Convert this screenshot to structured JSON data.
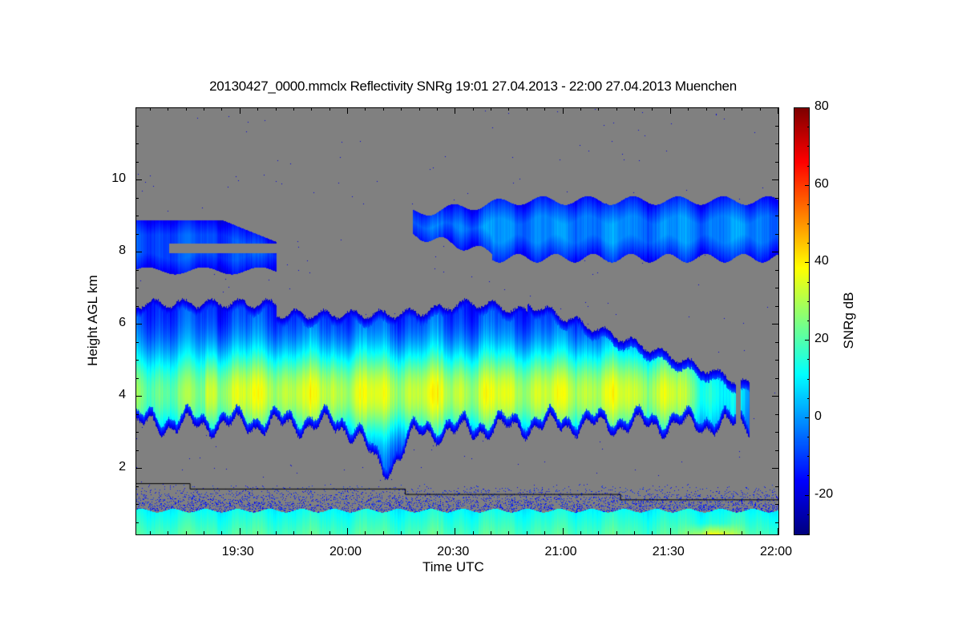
{
  "chart_data": {
    "type": "heatmap",
    "title": "20130427_0000.mmclx Reflectivity SNRg   19:01 27.04.2013 - 22:00 27.04.2013 Muenchen",
    "xlabel": "Time UTC",
    "ylabel": "Height AGL km",
    "colorbar_label": "SNRg dB",
    "xlim": [
      "19:01",
      "22:00"
    ],
    "ylim": [
      0.18,
      12.0
    ],
    "clim": [
      -30,
      80
    ],
    "colormap": "jet",
    "background_color": "#808080",
    "x_ticks": [
      {
        "minutes": 30,
        "label": "19:30"
      },
      {
        "minutes": 60,
        "label": "20:00"
      },
      {
        "minutes": 90,
        "label": "20:30"
      },
      {
        "minutes": 120,
        "label": "21:00"
      },
      {
        "minutes": 150,
        "label": "21:30"
      },
      {
        "minutes": 180,
        "label": "22:00"
      }
    ],
    "y_ticks": [
      {
        "value": 2,
        "label": "2"
      },
      {
        "value": 4,
        "label": "4"
      },
      {
        "value": 6,
        "label": "6"
      },
      {
        "value": 8,
        "label": "8"
      },
      {
        "value": 10,
        "label": "10"
      }
    ],
    "c_ticks": [
      {
        "value": -20,
        "label": "-20"
      },
      {
        "value": 0,
        "label": "0"
      },
      {
        "value": 20,
        "label": "20"
      },
      {
        "value": 40,
        "label": "40"
      },
      {
        "value": 60,
        "label": "60"
      },
      {
        "value": 80,
        "label": "80"
      }
    ],
    "layers": [
      {
        "name": "upper cloud west",
        "t_start": 1,
        "t_end": 40,
        "base_km": 7.5,
        "top_km": 9.0,
        "snr_db": -12
      },
      {
        "name": "upper cloud east",
        "t_start": 78,
        "t_end": 180,
        "base_km": 7.9,
        "top_km": 9.5,
        "snr_db": -8
      },
      {
        "name": "main cloud",
        "t_start": 1,
        "t_end": 170,
        "base_km": 3.2,
        "min_base_km": 2.0,
        "top_km": 6.6,
        "end_top_km": 4.4,
        "peak_height_km": 4.0,
        "peak_snr_db": 35
      },
      {
        "name": "boundary layer",
        "t_start": 1,
        "t_end": 180,
        "base_km": 0.18,
        "top_km": 0.85,
        "snr_db": 15,
        "max_snr_db": 50
      }
    ],
    "overlay_line_steps": [
      {
        "t_start": 1,
        "t_end": 16,
        "height_km": 1.6
      },
      {
        "t_start": 16,
        "t_end": 76,
        "height_km": 1.45
      },
      {
        "t_start": 76,
        "t_end": 136,
        "height_km": 1.3
      },
      {
        "t_start": 136,
        "t_end": 180,
        "height_km": 1.15
      }
    ]
  }
}
